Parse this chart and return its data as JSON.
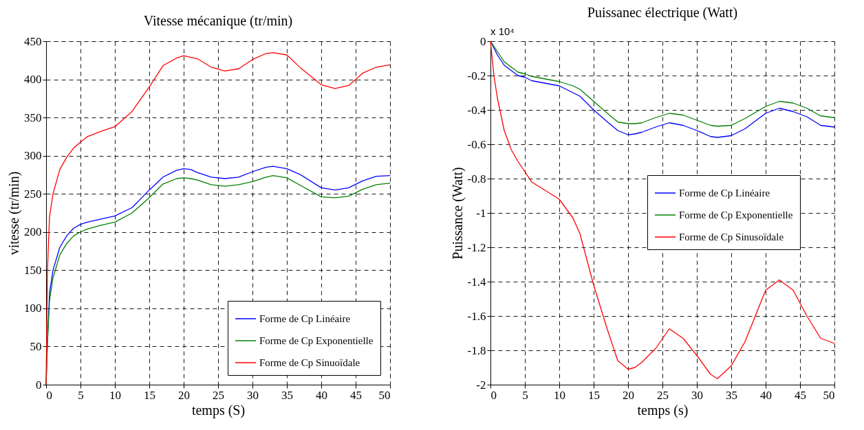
{
  "chart_data": [
    {
      "type": "line",
      "title": "Vitesse mécanique (tr/min)",
      "xlabel": "temps (S)",
      "ylabel": "vitesse (tr/min)",
      "x": [
        0,
        0.2,
        0.5,
        1,
        2,
        3,
        4,
        5,
        6,
        8,
        10,
        12.5,
        15,
        17,
        19,
        20,
        21,
        22,
        24,
        26,
        28,
        30,
        32,
        33,
        35,
        37,
        40,
        42,
        44,
        46,
        48,
        50
      ],
      "series": [
        {
          "name": "Forme de Cp Linéaire",
          "color": "#0000ff",
          "values": [
            0,
            60,
            120,
            150,
            180,
            195,
            205,
            210,
            213,
            217,
            221,
            232,
            255,
            272,
            281,
            283,
            282,
            278,
            272,
            270,
            272,
            279,
            285,
            286,
            283,
            275,
            258,
            255,
            258,
            267,
            273,
            274
          ]
        },
        {
          "name": "Forme de Cp Exponentielle",
          "color": "#008000",
          "values": [
            0,
            55,
            110,
            140,
            170,
            185,
            195,
            200,
            204,
            209,
            213,
            225,
            245,
            263,
            270,
            271,
            270,
            268,
            262,
            260,
            262,
            266,
            272,
            274,
            271,
            261,
            246,
            245,
            247,
            256,
            262,
            264
          ]
        },
        {
          "name": "Forme de Cp Sinuoïdale",
          "color": "#ff0000",
          "values": [
            0,
            150,
            220,
            250,
            282,
            298,
            310,
            318,
            325,
            332,
            338,
            358,
            390,
            418,
            428,
            431,
            429,
            427,
            416,
            411,
            414,
            426,
            434,
            435,
            432,
            415,
            393,
            388,
            392,
            408,
            416,
            419
          ]
        }
      ],
      "xlim": [
        0,
        50
      ],
      "xticks": [
        0,
        5,
        10,
        15,
        20,
        25,
        30,
        35,
        40,
        45,
        50
      ],
      "ylim": [
        0,
        450
      ],
      "yticks": [
        0,
        50,
        100,
        150,
        200,
        250,
        300,
        350,
        400,
        450
      ],
      "grid": true,
      "legend": "bottom right",
      "line_style": "solid",
      "marker": "none"
    },
    {
      "type": "line",
      "title": "Puissanec électrique (Watt)",
      "xlabel": "temps (s)",
      "ylabel": "Puissance (Watt)",
      "annotations": [
        "x 10⁴"
      ],
      "x": [
        0,
        0.5,
        1,
        2,
        3,
        4,
        5,
        6,
        8,
        10,
        12,
        13,
        15,
        17,
        18.5,
        20,
        21,
        22,
        24,
        26,
        28,
        30,
        32,
        33,
        35,
        37,
        40,
        42,
        44,
        46,
        48,
        50
      ],
      "series": [
        {
          "name": "Forme de Cp Linéaire",
          "color": "#0000ff",
          "values": [
            0,
            -0.04,
            -0.08,
            -0.14,
            -0.17,
            -0.2,
            -0.21,
            -0.23,
            -0.245,
            -0.26,
            -0.3,
            -0.32,
            -0.4,
            -0.47,
            -0.52,
            -0.545,
            -0.54,
            -0.53,
            -0.5,
            -0.475,
            -0.49,
            -0.52,
            -0.555,
            -0.56,
            -0.55,
            -0.51,
            -0.42,
            -0.39,
            -0.41,
            -0.44,
            -0.49,
            -0.5
          ]
        },
        {
          "name": "Forme de Cp Exponentielle",
          "color": "#008000",
          "values": [
            0,
            -0.03,
            -0.06,
            -0.12,
            -0.15,
            -0.18,
            -0.19,
            -0.205,
            -0.22,
            -0.235,
            -0.26,
            -0.28,
            -0.35,
            -0.42,
            -0.47,
            -0.48,
            -0.48,
            -0.475,
            -0.445,
            -0.42,
            -0.43,
            -0.46,
            -0.49,
            -0.495,
            -0.49,
            -0.45,
            -0.38,
            -0.35,
            -0.36,
            -0.39,
            -0.435,
            -0.445
          ]
        },
        {
          "name": "Forme de Cp Sinusoïdale",
          "color": "#ff0000",
          "values": [
            0,
            -0.2,
            -0.33,
            -0.52,
            -0.63,
            -0.7,
            -0.76,
            -0.82,
            -0.87,
            -0.92,
            -1.03,
            -1.12,
            -1.42,
            -1.68,
            -1.86,
            -1.91,
            -1.9,
            -1.87,
            -1.79,
            -1.675,
            -1.73,
            -1.83,
            -1.94,
            -1.965,
            -1.89,
            -1.75,
            -1.45,
            -1.39,
            -1.45,
            -1.6,
            -1.73,
            -1.76
          ]
        }
      ],
      "xlim": [
        0,
        50
      ],
      "xticks": [
        0,
        5,
        10,
        15,
        20,
        25,
        30,
        35,
        40,
        45,
        50
      ],
      "ylim": [
        -2,
        0
      ],
      "yticks": [
        -2,
        -1.8,
        -1.6,
        -1.4,
        -1.2,
        -1,
        -0.8,
        -0.6,
        -0.4,
        -0.2,
        0
      ],
      "grid": true,
      "legend": "right",
      "line_style": "solid",
      "marker": "none"
    }
  ]
}
